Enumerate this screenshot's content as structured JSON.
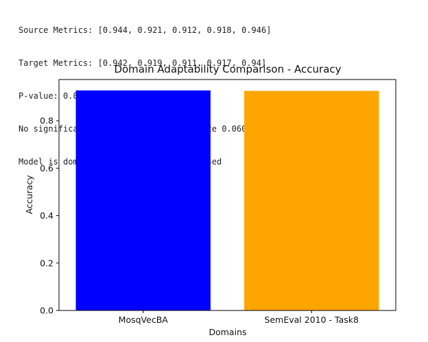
{
  "console_output": [
    "Source Metrics: [0.944, 0.921, 0.912, 0.918, 0.946]",
    "Target Metrics: [0.942, 0.919, 0.911, 0.917, 0.94]",
    "P-value: 0.060812856154522504",
    "No significant difference in performance 0.060812856154522504",
    "Model is domain adaptable and generalised"
  ],
  "chart_data": {
    "type": "bar",
    "title": "Domain Adaptability Comparison - Accuracy",
    "xlabel": "Domains",
    "ylabel": "Accuracy",
    "categories": [
      "MosqVecBA",
      "SemEval 2010 - Task8"
    ],
    "values": [
      0.928,
      0.926
    ],
    "colors": [
      "#0000ff",
      "#ffa500"
    ],
    "ylim": [
      0,
      0.974
    ],
    "yticks": [
      0.0,
      0.2,
      0.4,
      0.6,
      0.8
    ],
    "ytick_labels": [
      "0.0",
      "0.2",
      "0.4",
      "0.6",
      "0.8"
    ],
    "grid": false
  }
}
